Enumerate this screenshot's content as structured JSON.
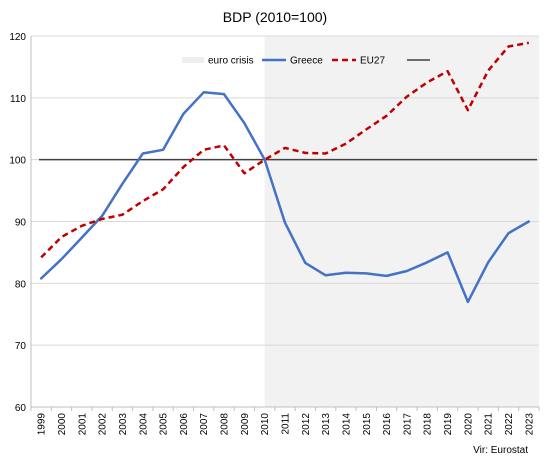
{
  "chart_data": {
    "type": "line",
    "title": "BDP (2010=100)",
    "source": "Vir: Eurostat",
    "xlabel": "",
    "ylabel": "",
    "ylim": [
      60,
      120
    ],
    "yticks": [
      60,
      70,
      80,
      90,
      100,
      110,
      120
    ],
    "grid": "horizontal",
    "legend_position": "top",
    "categories": [
      "1999",
      "2000",
      "2001",
      "2002",
      "2003",
      "2004",
      "2005",
      "2006",
      "2007",
      "2008",
      "2009",
      "2010",
      "2011",
      "2012",
      "2013",
      "2014",
      "2015",
      "2016",
      "2017",
      "2018",
      "2019",
      "2020",
      "2021",
      "2022",
      "2023"
    ],
    "shaded_region": {
      "name": "euro crisis",
      "from": "2010",
      "to": "2023",
      "color": "#f2f2f2"
    },
    "series": [
      {
        "name": "Greece",
        "color": "#4472c4",
        "style": "solid",
        "values": [
          80.8,
          83.9,
          87.4,
          90.9,
          96.1,
          101.0,
          101.6,
          107.4,
          110.9,
          110.6,
          105.9,
          100.0,
          89.8,
          83.3,
          81.3,
          81.7,
          81.6,
          81.2,
          82.0,
          83.4,
          85.0,
          77.0,
          83.4,
          88.1,
          90.0
        ]
      },
      {
        "name": "EU27",
        "color": "#c00000",
        "style": "dashed",
        "values": [
          84.2,
          87.5,
          89.3,
          90.4,
          91.1,
          93.3,
          95.2,
          98.8,
          101.6,
          102.3,
          97.8,
          100.0,
          101.9,
          101.1,
          101.0,
          102.6,
          104.9,
          107.1,
          110.2,
          112.5,
          114.3,
          108.0,
          114.4,
          118.3,
          118.9
        ]
      }
    ],
    "reference_line": {
      "value": 100,
      "color": "#404040"
    }
  }
}
